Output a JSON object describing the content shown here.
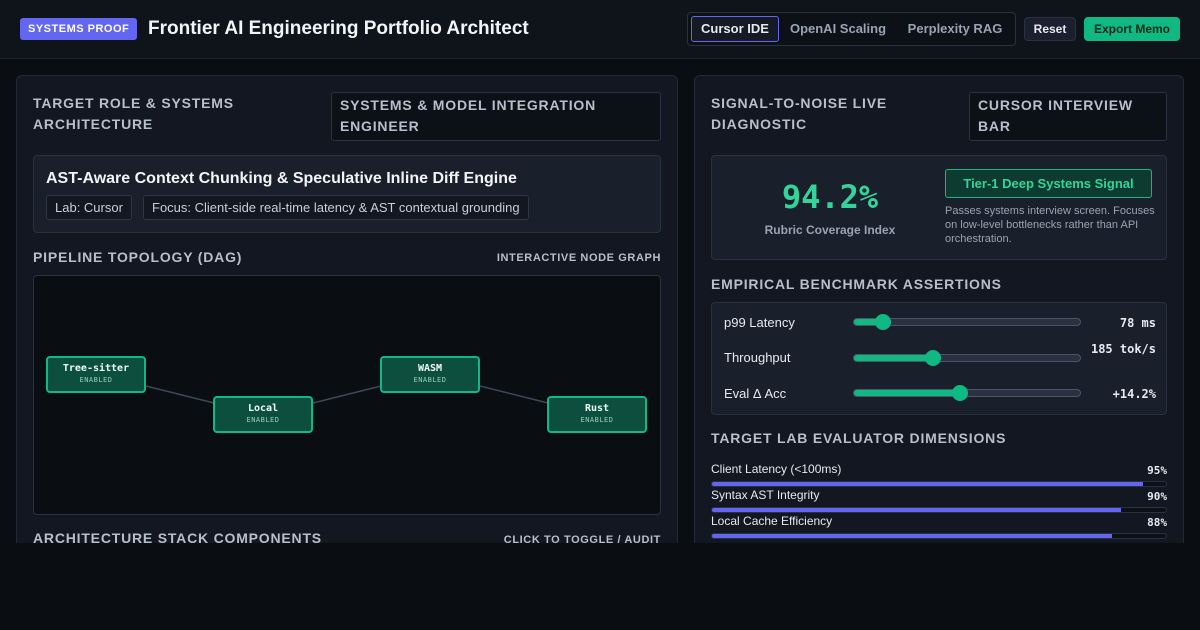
{
  "header": {
    "badge": "SYSTEMS PROOF",
    "title": "Frontier AI Engineering Portfolio Architect",
    "tabs": [
      {
        "label": "Cursor IDE",
        "active": true
      },
      {
        "label": "OpenAI Scaling",
        "active": false
      },
      {
        "label": "Perplexity RAG",
        "active": false
      }
    ],
    "reset_label": "Reset",
    "export_label": "Export Memo"
  },
  "left": {
    "target_title": "TARGET ROLE & SYSTEMS ARCHITECTURE",
    "role_select": "SYSTEMS & MODEL INTEGRATION ENGINEER",
    "project": {
      "title": "AST-Aware Context Chunking & Speculative Inline Diff Engine",
      "lab": "Lab: Cursor",
      "focus": "Focus: Client-side real-time latency & AST contextual grounding"
    },
    "pipeline_title": "PIPELINE TOPOLOGY (DAG)",
    "pipeline_hint": "INTERACTIVE NODE GRAPH",
    "nodes": [
      {
        "name": "Tree-sitter",
        "status": "ENABLED"
      },
      {
        "name": "Local",
        "status": "ENABLED"
      },
      {
        "name": "WASM",
        "status": "ENABLED"
      },
      {
        "name": "Rust",
        "status": "ENABLED"
      }
    ],
    "stack_title": "ARCHITECTURE STACK COMPONENTS",
    "stack_hint": "CLICK TO TOGGLE / AUDIT"
  },
  "right": {
    "signal_title": "SIGNAL-TO-NOISE LIVE DIAGNOSTIC",
    "interview_select": "CURSOR INTERVIEW BAR",
    "score_value": "94.2%",
    "score_label": "Rubric Coverage Index",
    "tier": "Tier-1 Deep Systems Signal",
    "tier_desc": "Passes systems interview screen. Focuses on low-level bottlenecks rather than API orchestration.",
    "bench_title": "EMPIRICAL BENCHMARK ASSERTIONS",
    "benchmarks": [
      {
        "label": "p99 Latency",
        "value": "78 ms",
        "level": 0.13
      },
      {
        "label": "Throughput",
        "value": "185 tok/s",
        "level": 0.35
      },
      {
        "label": "Eval Δ Acc",
        "value": "+14.2%",
        "level": 0.47
      }
    ],
    "dims_title": "TARGET LAB EVALUATOR DIMENSIONS",
    "dimensions": [
      {
        "label": "Client Latency (<100ms)",
        "value": "95%",
        "level": 0.95
      },
      {
        "label": "Syntax AST Integrity",
        "value": "90%",
        "level": 0.9
      },
      {
        "label": "Local Cache Efficiency",
        "value": "88%",
        "level": 0.88
      }
    ]
  },
  "colors": {
    "accent": "#6366f1",
    "success": "#10b981",
    "background": "#0a0d12"
  }
}
